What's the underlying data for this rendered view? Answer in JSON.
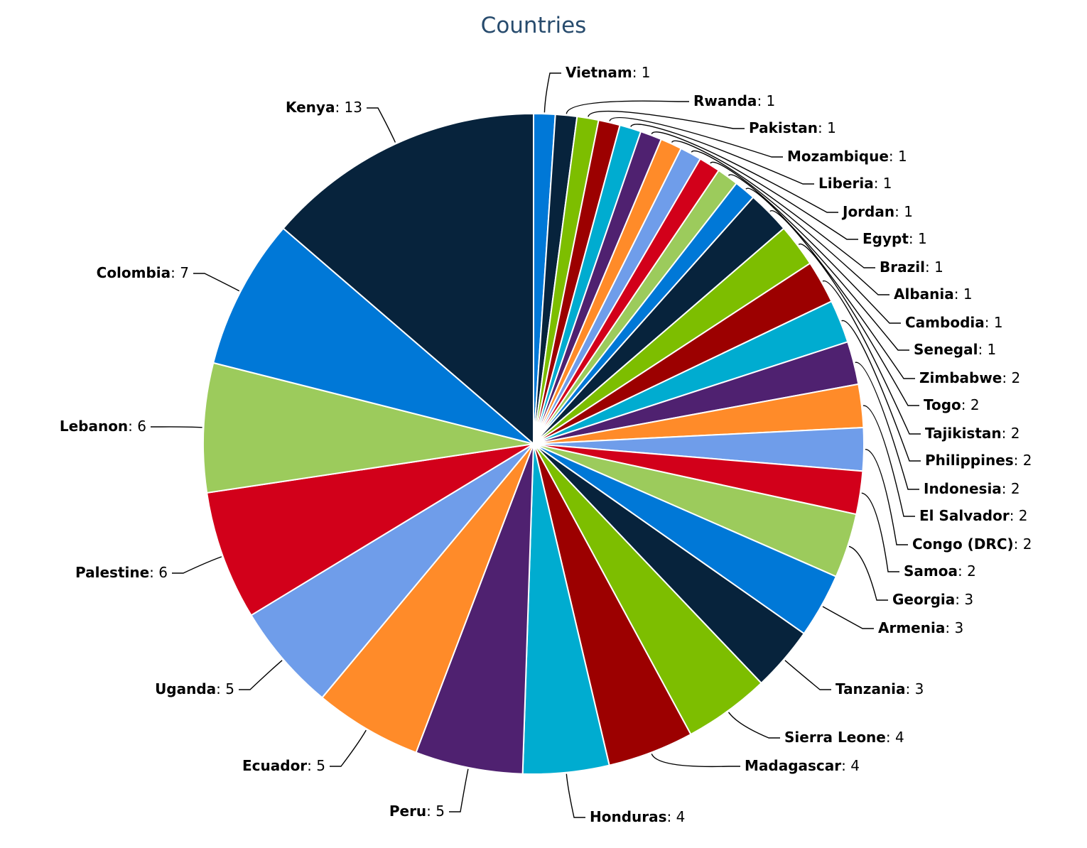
{
  "chart_data": {
    "type": "pie",
    "title": "Countries",
    "label_separator": ": ",
    "palette": [
      "#0078d7",
      "#07233c",
      "#7dbe00",
      "#9c0000",
      "#00acd0",
      "#4f2170",
      "#ff8b29",
      "#6f9dea",
      "#d2001a",
      "#9ccb5c"
    ],
    "slices": [
      {
        "name": "Vietnam",
        "value": 1,
        "color": "#0078d7"
      },
      {
        "name": "Rwanda",
        "value": 1,
        "color": "#07233c"
      },
      {
        "name": "Pakistan",
        "value": 1,
        "color": "#7dbe00"
      },
      {
        "name": "Mozambique",
        "value": 1,
        "color": "#9c0000"
      },
      {
        "name": "Liberia",
        "value": 1,
        "color": "#00acd0"
      },
      {
        "name": "Jordan",
        "value": 1,
        "color": "#4f2170"
      },
      {
        "name": "Egypt",
        "value": 1,
        "color": "#ff8b29"
      },
      {
        "name": "Brazil",
        "value": 1,
        "color": "#6f9dea"
      },
      {
        "name": "Albania",
        "value": 1,
        "color": "#d2001a"
      },
      {
        "name": "Cambodia",
        "value": 1,
        "color": "#9ccb5c"
      },
      {
        "name": "Senegal",
        "value": 1,
        "color": "#0078d7"
      },
      {
        "name": "Zimbabwe",
        "value": 2,
        "color": "#07233c"
      },
      {
        "name": "Togo",
        "value": 2,
        "color": "#7dbe00"
      },
      {
        "name": "Tajikistan",
        "value": 2,
        "color": "#9c0000"
      },
      {
        "name": "Philippines",
        "value": 2,
        "color": "#00acd0"
      },
      {
        "name": "Indonesia",
        "value": 2,
        "color": "#4f2170"
      },
      {
        "name": "El Salvador",
        "value": 2,
        "color": "#ff8b29"
      },
      {
        "name": "Congo (DRC)",
        "value": 2,
        "color": "#6f9dea"
      },
      {
        "name": "Samoa",
        "value": 2,
        "color": "#d2001a"
      },
      {
        "name": "Georgia",
        "value": 3,
        "color": "#9ccb5c"
      },
      {
        "name": "Armenia",
        "value": 3,
        "color": "#0078d7"
      },
      {
        "name": "Tanzania",
        "value": 3,
        "color": "#07233c"
      },
      {
        "name": "Sierra Leone",
        "value": 4,
        "color": "#7dbe00"
      },
      {
        "name": "Madagascar",
        "value": 4,
        "color": "#9c0000"
      },
      {
        "name": "Honduras",
        "value": 4,
        "color": "#00acd0"
      },
      {
        "name": "Peru",
        "value": 5,
        "color": "#4f2170"
      },
      {
        "name": "Ecuador",
        "value": 5,
        "color": "#ff8b29"
      },
      {
        "name": "Uganda",
        "value": 5,
        "color": "#6f9dea"
      },
      {
        "name": "Palestine",
        "value": 6,
        "color": "#d2001a"
      },
      {
        "name": "Lebanon",
        "value": 6,
        "color": "#9ccb5c"
      },
      {
        "name": "Colombia",
        "value": 7,
        "color": "#0078d7"
      },
      {
        "name": "Kenya",
        "value": 13,
        "color": "#07233c"
      }
    ]
  }
}
